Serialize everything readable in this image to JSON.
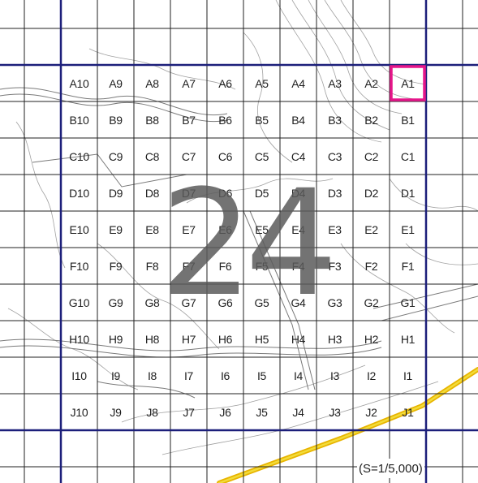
{
  "map": {
    "sheet_number": "24",
    "scale": "(S=1/5,000)",
    "highlight_cell": "A1",
    "colors": {
      "index_grid": "#1c1f7a",
      "sub_grid": "#222222",
      "highlight": "#e6168a",
      "contour": "#a0a0a0",
      "road": "#7a7a7a",
      "rail_outer": "#e8b400",
      "rail_inner": "#f2dc3a",
      "label": "#1f1f1f",
      "sheet_number": "#5a5a5a"
    },
    "rows": [
      "A",
      "B",
      "C",
      "D",
      "E",
      "F",
      "G",
      "H",
      "I",
      "J"
    ],
    "columns": [
      "10",
      "9",
      "8",
      "7",
      "6",
      "5",
      "4",
      "3",
      "2",
      "1"
    ],
    "cells": [
      [
        "A10",
        "A9",
        "A8",
        "A7",
        "A6",
        "A5",
        "A4",
        "A3",
        "A2",
        "A1"
      ],
      [
        "B10",
        "B9",
        "B8",
        "B7",
        "B6",
        "B5",
        "B4",
        "B3",
        "B2",
        "B1"
      ],
      [
        "C10",
        "C9",
        "C8",
        "C7",
        "C6",
        "C5",
        "C4",
        "C3",
        "C2",
        "C1"
      ],
      [
        "D10",
        "D9",
        "D8",
        "D7",
        "D6",
        "D5",
        "D4",
        "D3",
        "D2",
        "D1"
      ],
      [
        "E10",
        "E9",
        "E8",
        "E7",
        "E6",
        "E5",
        "E4",
        "E3",
        "E2",
        "E1"
      ],
      [
        "F10",
        "F9",
        "F8",
        "F7",
        "F6",
        "F5",
        "F4",
        "F3",
        "F2",
        "F1"
      ],
      [
        "G10",
        "G9",
        "G8",
        "G7",
        "G6",
        "G5",
        "G4",
        "G3",
        "G2",
        "G1"
      ],
      [
        "H10",
        "H9",
        "H8",
        "H7",
        "H6",
        "H5",
        "H4",
        "H3",
        "H2",
        "H1"
      ],
      [
        "I10",
        "I9",
        "I8",
        "I7",
        "I6",
        "I5",
        "I4",
        "I3",
        "I2",
        "I1"
      ],
      [
        "J10",
        "J9",
        "J8",
        "J7",
        "J6",
        "J5",
        "J4",
        "J3",
        "J2",
        "J1"
      ]
    ]
  }
}
